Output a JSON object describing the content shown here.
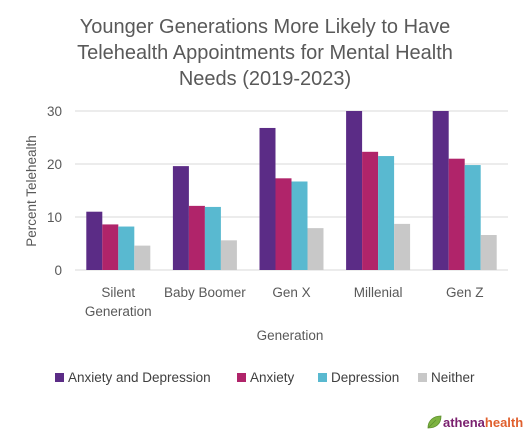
{
  "chart_data": {
    "type": "bar",
    "title_lines": [
      "Younger Generations More Likely to Have",
      "Telehealth Appointments for Mental Health",
      "Needs (2019-2023)"
    ],
    "xlabel": "Generation",
    "ylabel": "Percent Telehealth",
    "ylim": [
      0,
      30
    ],
    "yticks": [
      0,
      10,
      20,
      30
    ],
    "grid": true,
    "legend_position": "bottom",
    "categories": [
      [
        "Silent",
        "Generation"
      ],
      [
        "Baby Boomer"
      ],
      [
        "Gen X"
      ],
      [
        "Millenial"
      ],
      [
        "Gen Z"
      ]
    ],
    "series": [
      {
        "name": "Anxiety and Depression",
        "color": "#5B2C86",
        "values": [
          11.0,
          19.6,
          26.8,
          30.0,
          30.0
        ]
      },
      {
        "name": "Anxiety",
        "color": "#B0246A",
        "values": [
          8.6,
          12.1,
          17.3,
          22.3,
          21.0
        ]
      },
      {
        "name": "Depression",
        "color": "#59B9D0",
        "values": [
          8.2,
          11.9,
          16.7,
          21.5,
          19.8
        ]
      },
      {
        "name": "Neither",
        "color": "#C8C8C8",
        "values": [
          4.6,
          5.6,
          7.9,
          8.7,
          6.6
        ]
      }
    ]
  },
  "brand": {
    "name_prefix": "athena",
    "name_suffix": "health",
    "prefix_color": "#7A1F6E",
    "suffix_color": "#E0602E",
    "icon": "leaf-icon"
  }
}
